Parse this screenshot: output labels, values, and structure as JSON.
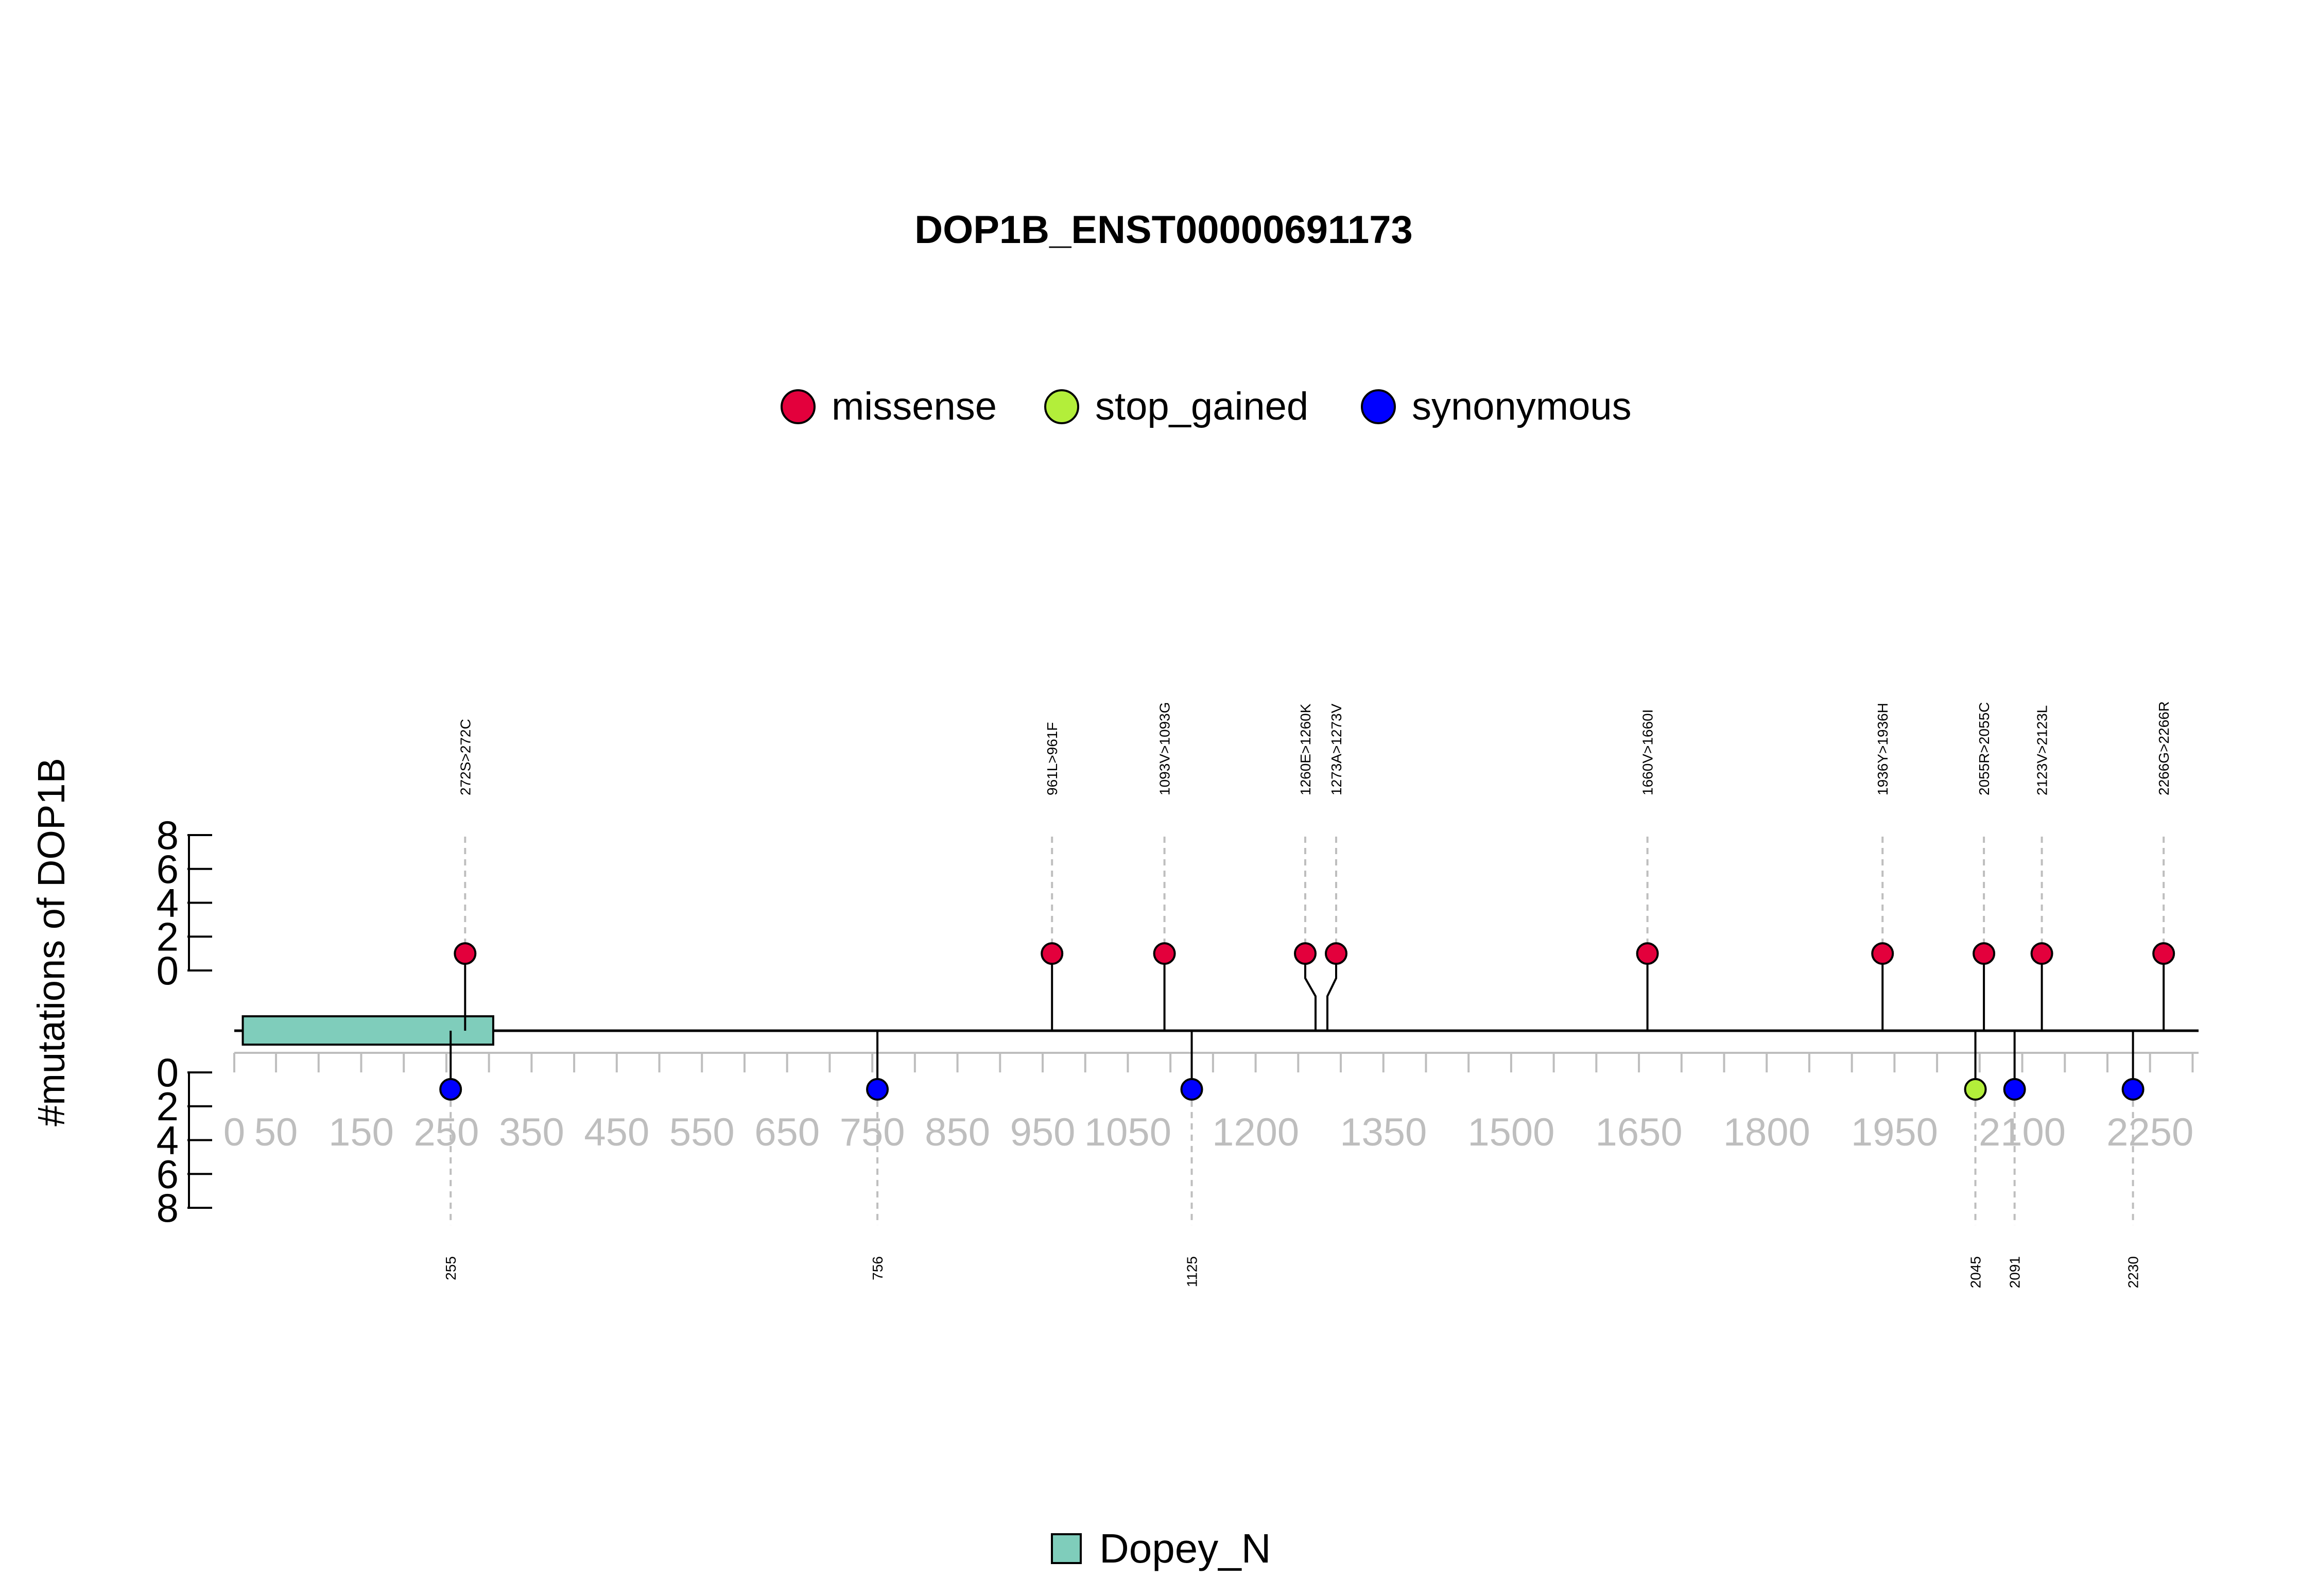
{
  "chart_data": {
    "type": "lollipop",
    "title": "DOP1B_ENST00000691173",
    "ylabel": "#mutations of DOP1B",
    "ylim": [
      0,
      8
    ],
    "yticks": [
      0,
      2,
      4,
      6,
      8
    ],
    "xlim": [
      1,
      2307
    ],
    "xticks": [
      "0",
      "50",
      "150",
      "250",
      "350",
      "450",
      "550",
      "650",
      "750",
      "850",
      "950",
      "1050",
      "1200",
      "1350",
      "1500",
      "1650",
      "1800",
      "1950",
      "2100",
      "2250"
    ],
    "legend_position": "top-center",
    "legend": [
      {
        "name": "missense",
        "color": "#E3003C"
      },
      {
        "name": "stop_gained",
        "color": "#B3EE3A"
      },
      {
        "name": "synonymous",
        "color": "#0000FF"
      }
    ],
    "domains": [
      {
        "name": "Dopey_N",
        "start": 11,
        "end": 305,
        "color": "#7FCDBB"
      }
    ],
    "mutations_above": [
      {
        "pos": 272,
        "label": "272S>272C",
        "type": "missense",
        "count": 1
      },
      {
        "pos": 961,
        "label": "961L>961F",
        "type": "missense",
        "count": 1
      },
      {
        "pos": 1093,
        "label": "1093V>1093G",
        "type": "missense",
        "count": 1
      },
      {
        "pos": 1260,
        "label": "1260E>1260K",
        "type": "missense",
        "count": 1
      },
      {
        "pos": 1273,
        "label": "1273A>1273V",
        "type": "missense",
        "count": 1
      },
      {
        "pos": 1660,
        "label": "1660V>1660I",
        "type": "missense",
        "count": 1
      },
      {
        "pos": 1936,
        "label": "1936Y>1936H",
        "type": "missense",
        "count": 1
      },
      {
        "pos": 2055,
        "label": "2055R>2055C",
        "type": "missense",
        "count": 1
      },
      {
        "pos": 2123,
        "label": "2123V>2123L",
        "type": "missense",
        "count": 1
      },
      {
        "pos": 2266,
        "label": "2266G>2266R",
        "type": "missense",
        "count": 1
      }
    ],
    "mutations_below": [
      {
        "pos": 255,
        "label": "255",
        "type": "synonymous",
        "count": 1
      },
      {
        "pos": 756,
        "label": "756",
        "type": "synonymous",
        "count": 1
      },
      {
        "pos": 1125,
        "label": "1125",
        "type": "synonymous",
        "count": 1
      },
      {
        "pos": 2045,
        "label": "2045",
        "type": "stop_gained",
        "count": 1
      },
      {
        "pos": 2091,
        "label": "2091",
        "type": "synonymous",
        "count": 1
      },
      {
        "pos": 2230,
        "label": "2230",
        "type": "synonymous",
        "count": 1
      }
    ],
    "domain_legend": "Dopey_N"
  }
}
